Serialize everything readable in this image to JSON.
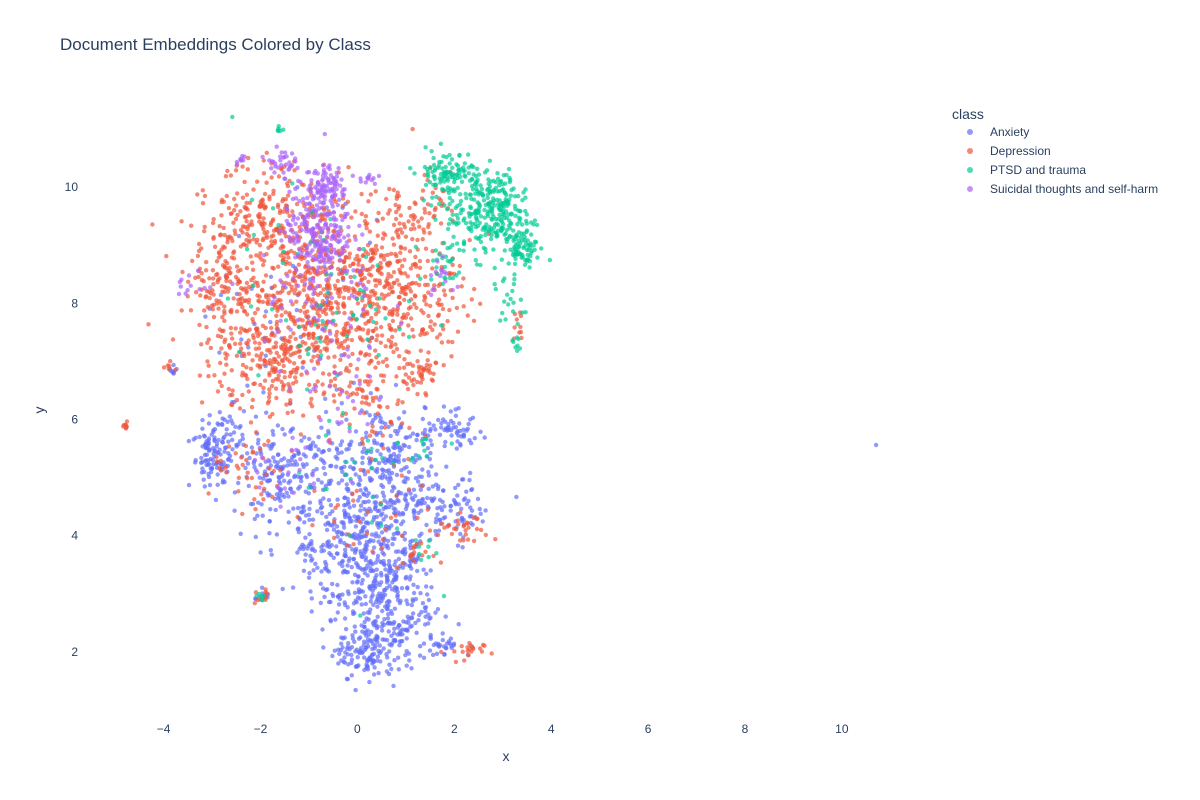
{
  "chart_data": {
    "type": "scatter",
    "title": "Document Embeddings Colored by Class",
    "xlabel": "x",
    "ylabel": "y",
    "xlim": [
      -4.9,
      11.2
    ],
    "ylim": [
      1.0,
      11.5
    ],
    "x_ticks": [
      -4,
      -2,
      0,
      2,
      4,
      6,
      8,
      10
    ],
    "y_ticks": [
      2,
      4,
      6,
      8,
      10
    ],
    "x_tick_labels": [
      "−4",
      "−2",
      "0",
      "2",
      "4",
      "6",
      "8",
      "10"
    ],
    "y_tick_labels": [
      "2",
      "4",
      "6",
      "8",
      "10"
    ],
    "grid": false,
    "legend": {
      "title": "class",
      "position": "top-right"
    },
    "series": [
      {
        "name": "Anxiety",
        "color": "#636efa",
        "clusters": [
          [
            0.3,
            3.2,
            0.5,
            0.7,
            340
          ],
          [
            0.0,
            4.5,
            0.8,
            0.6,
            260
          ],
          [
            -1.6,
            5.0,
            0.5,
            0.4,
            170
          ],
          [
            -3.0,
            5.4,
            0.2,
            0.3,
            95
          ],
          [
            0.6,
            5.5,
            0.6,
            0.4,
            160
          ],
          [
            0.2,
            1.9,
            0.3,
            0.2,
            90
          ],
          [
            1.0,
            2.5,
            0.4,
            0.3,
            80
          ],
          [
            1.5,
            4.6,
            0.5,
            0.2,
            60
          ],
          [
            1.9,
            5.8,
            0.4,
            0.15,
            60
          ],
          [
            0.9,
            3.4,
            0.3,
            0.3,
            50
          ],
          [
            -0.9,
            3.6,
            0.3,
            0.3,
            40
          ],
          [
            2.0,
            4.3,
            0.3,
            0.2,
            40
          ],
          [
            -2.6,
            5.7,
            0.2,
            0.25,
            40
          ],
          [
            1.9,
            2.1,
            0.3,
            0.1,
            25
          ],
          [
            -1.5,
            7.6,
            0.8,
            0.6,
            40
          ],
          [
            -0.6,
            9.0,
            0.6,
            0.6,
            30
          ],
          [
            -3.8,
            6.85,
            0.05,
            0.05,
            8
          ],
          [
            -2.0,
            2.95,
            0.08,
            0.06,
            8
          ],
          [
            10.7,
            5.58,
            0.01,
            0.01,
            1
          ]
        ]
      },
      {
        "name": "Depression",
        "color": "#ef553b",
        "clusters": [
          [
            -1.5,
            8.4,
            0.9,
            0.8,
            430
          ],
          [
            -1.6,
            7.0,
            0.7,
            0.5,
            240
          ],
          [
            -0.2,
            8.0,
            0.7,
            0.7,
            240
          ],
          [
            0.6,
            8.6,
            0.5,
            0.5,
            130
          ],
          [
            1.3,
            8.0,
            0.5,
            0.5,
            120
          ],
          [
            -2.8,
            8.4,
            0.3,
            0.4,
            90
          ],
          [
            -1.8,
            9.6,
            0.6,
            0.4,
            140
          ],
          [
            0.3,
            6.5,
            0.4,
            0.5,
            70
          ],
          [
            1.3,
            6.8,
            0.2,
            0.15,
            40
          ],
          [
            -2.2,
            5.0,
            0.4,
            0.3,
            40
          ],
          [
            1.2,
            9.6,
            0.5,
            0.3,
            60
          ],
          [
            2.2,
            4.1,
            0.3,
            0.15,
            30
          ],
          [
            2.2,
            2.0,
            0.2,
            0.1,
            20
          ],
          [
            -4.8,
            5.9,
            0.04,
            0.05,
            8
          ],
          [
            -3.9,
            6.9,
            0.05,
            0.05,
            6
          ],
          [
            -2.0,
            2.95,
            0.08,
            0.06,
            10
          ],
          [
            1.2,
            3.6,
            0.2,
            0.15,
            15
          ],
          [
            0.2,
            4.5,
            0.6,
            0.6,
            40
          ],
          [
            3.3,
            7.5,
            0.1,
            0.2,
            10
          ]
        ]
      },
      {
        "name": "PTSD and trauma",
        "color": "#00cc96",
        "clusters": [
          [
            2.7,
            9.5,
            0.45,
            0.35,
            240
          ],
          [
            1.9,
            10.25,
            0.35,
            0.2,
            110
          ],
          [
            3.4,
            8.95,
            0.15,
            0.15,
            70
          ],
          [
            3.0,
            9.9,
            0.25,
            0.2,
            50
          ],
          [
            3.1,
            8.0,
            0.15,
            0.25,
            20
          ],
          [
            -1.6,
            11.0,
            0.04,
            0.03,
            6
          ],
          [
            -0.8,
            8.0,
            0.9,
            0.9,
            70
          ],
          [
            0.2,
            5.0,
            0.7,
            0.8,
            30
          ],
          [
            1.3,
            3.8,
            0.1,
            0.1,
            8
          ],
          [
            1.7,
            8.6,
            0.2,
            0.2,
            20
          ],
          [
            3.3,
            7.3,
            0.1,
            0.1,
            8
          ],
          [
            -2.0,
            2.95,
            0.06,
            0.05,
            6
          ],
          [
            1.3,
            5.6,
            0.1,
            0.1,
            6
          ]
        ]
      },
      {
        "name": "Suicidal thoughts and self-harm",
        "color": "#ab63fa",
        "clusters": [
          [
            -0.8,
            9.3,
            0.35,
            0.45,
            230
          ],
          [
            -0.6,
            10.05,
            0.2,
            0.15,
            60
          ],
          [
            -1.6,
            10.45,
            0.15,
            0.1,
            30
          ],
          [
            -2.4,
            10.5,
            0.06,
            0.05,
            8
          ],
          [
            0.2,
            10.15,
            0.1,
            0.05,
            12
          ],
          [
            -0.9,
            8.0,
            0.7,
            0.6,
            60
          ],
          [
            -3.4,
            8.3,
            0.15,
            0.15,
            12
          ],
          [
            1.8,
            8.4,
            0.2,
            0.2,
            15
          ],
          [
            -0.5,
            6.5,
            0.6,
            0.5,
            30
          ],
          [
            -1.6,
            4.9,
            0.4,
            0.3,
            15
          ]
        ]
      }
    ]
  }
}
